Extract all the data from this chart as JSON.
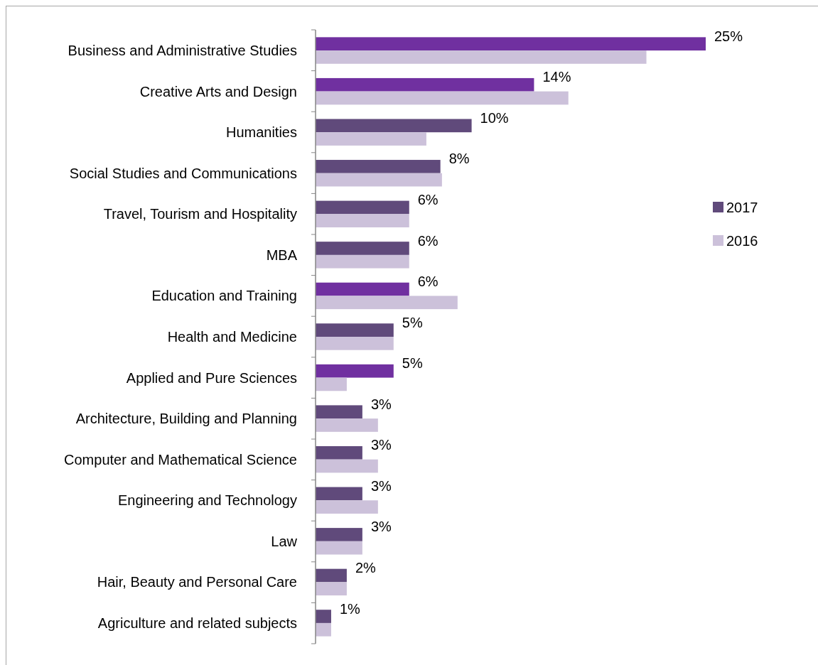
{
  "chart_data": {
    "type": "bar",
    "orientation": "horizontal",
    "legend": "right",
    "xlim": [
      0,
      25
    ],
    "categories": [
      "Business and Administrative Studies",
      "Creative Arts and Design",
      "Humanities",
      "Social Studies and Communications",
      "Travel, Tourism and Hospitality",
      "MBA",
      "Education and Training",
      "Health and Medicine",
      "Applied and Pure Sciences",
      "Architecture, Building and Planning",
      "Computer and Mathematical Science",
      "Engineering and Technology",
      "Law",
      "Hair, Beauty and Personal Care",
      "Agriculture and related subjects"
    ],
    "series": [
      {
        "name": "2017",
        "color": "#604a7b",
        "colors": [
          "#7030a0",
          "#7030a0",
          "#604a7b",
          "#604a7b",
          "#604a7b",
          "#604a7b",
          "#7030a0",
          "#604a7b",
          "#7030a0",
          "#604a7b",
          "#604a7b",
          "#604a7b",
          "#604a7b",
          "#604a7b",
          "#604a7b"
        ],
        "values": [
          25,
          14,
          10,
          8,
          6,
          6,
          6,
          5,
          5,
          3,
          3,
          3,
          3,
          2,
          1
        ],
        "value_labels": [
          "25%",
          "14%",
          "10%",
          "8%",
          "6%",
          "6%",
          "6%",
          "5%",
          "5%",
          "3%",
          "3%",
          "3%",
          "3%",
          "2%",
          "1%"
        ]
      },
      {
        "name": "2016",
        "color": "#ccc1da",
        "values": [
          21.2,
          16.2,
          7.1,
          8.1,
          6.0,
          6.0,
          9.1,
          5.0,
          2.0,
          4.0,
          4.0,
          4.0,
          3.0,
          2.0,
          1.0
        ]
      }
    ]
  }
}
